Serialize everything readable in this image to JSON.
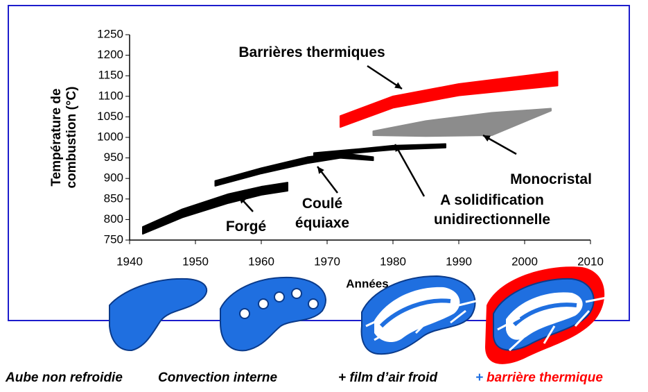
{
  "chart_data": {
    "type": "range",
    "xlabel": "Années",
    "ylabel": [
      "Température de",
      "combustion (°C)"
    ],
    "xlim": [
      1940,
      2010
    ],
    "xticks": [
      1940,
      1950,
      1960,
      1970,
      1980,
      1990,
      2000,
      2010
    ],
    "ylim": [
      750,
      1250
    ],
    "yticks": [
      750,
      800,
      850,
      900,
      950,
      1000,
      1050,
      1100,
      1150,
      1200,
      1250
    ],
    "series": [
      {
        "name": "Forgé",
        "color": "#000000",
        "x": [
          1942,
          1948,
          1955,
          1960,
          1964
        ],
        "low": [
          765,
          805,
          840,
          860,
          870
        ],
        "high": [
          782,
          825,
          862,
          880,
          890
        ]
      },
      {
        "name": "Coulé équiaxe",
        "color": "#000000",
        "x": [
          1953,
          1960,
          1967,
          1972,
          1977
        ],
        "low": [
          882,
          912,
          937,
          950,
          944
        ],
        "high": [
          894,
          925,
          952,
          962,
          952
        ]
      },
      {
        "name": "A solidification unidirectionnelle",
        "color": "#000000",
        "x": [
          1968,
          1975,
          1980,
          1988
        ],
        "low": [
          953,
          963,
          970,
          975
        ],
        "high": [
          962,
          972,
          980,
          984
        ]
      },
      {
        "name": "Monocristal",
        "color": "#8c8c8c",
        "x": [
          1977,
          1985,
          1995,
          2004
        ],
        "low": [
          1005,
          1003,
          1005,
          1065
        ],
        "high": [
          1015,
          1040,
          1060,
          1070
        ]
      },
      {
        "name": "Barrières thermiques",
        "color": "#ff0000",
        "x": [
          1972,
          1980,
          1990,
          2005
        ],
        "low": [
          1025,
          1072,
          1102,
          1126
        ],
        "high": [
          1052,
          1100,
          1130,
          1160
        ]
      }
    ]
  },
  "illustrations": {
    "captions": [
      "Aube non refroidie",
      "Convection interne",
      "+ film d’air froid"
    ],
    "last_caption": {
      "prefix": "+",
      "text": "barrière thermique"
    }
  }
}
